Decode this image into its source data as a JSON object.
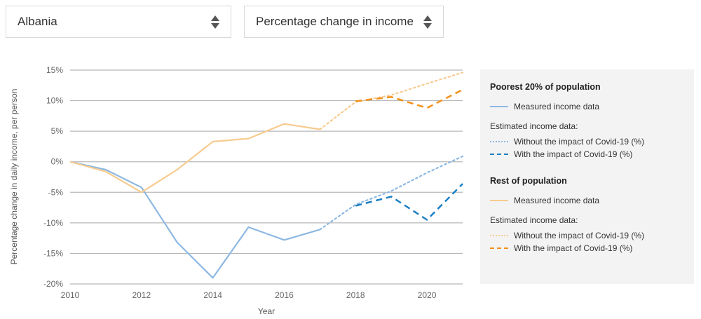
{
  "controls": {
    "country": "Albania",
    "measure": "Percentage change in income"
  },
  "colors": {
    "poorest_measured": "#8db8e2",
    "poorest_without": "#8db8e2",
    "poorest_with": "#1c7fc2",
    "rest_measured": "#f7cb8f",
    "rest_without": "#f7cb8f",
    "rest_with": "#f2911c"
  },
  "legend": {
    "poorest_title": "Poorest 20% of population",
    "measured": "Measured income data",
    "estimated": "Estimated income data:",
    "without": "Without the impact of Covid-19 (%)",
    "with": "With the impact of Covid-19 (%)",
    "rest_title": "Rest of population"
  },
  "chart_data": {
    "type": "line",
    "xlabel": "Year",
    "ylabel": "Percentage change in daily income, per person",
    "xlim": [
      2010,
      2021
    ],
    "ylim": [
      -20,
      15
    ],
    "x_ticks": [
      2010,
      2012,
      2014,
      2016,
      2018,
      2020
    ],
    "x_tick_labels": [
      "2010",
      "2012",
      "2014",
      "2016",
      "2018",
      "2020"
    ],
    "y_ticks": [
      15,
      10,
      5,
      0,
      -5,
      -10,
      -15,
      -20
    ],
    "y_tick_labels": [
      "15%",
      "10%",
      "5%",
      "0%",
      "-5%",
      "-10%",
      "-15%",
      "-20%"
    ],
    "grid": true,
    "series": [
      {
        "name": "Poorest 20% of population - Measured income data",
        "style": "solid",
        "color_key": "poorest_measured",
        "x": [
          2010,
          2011,
          2012,
          2013,
          2014,
          2015,
          2016,
          2017
        ],
        "y": [
          0,
          -1.3,
          -4.2,
          -13.2,
          -19.0,
          -10.7,
          -12.8,
          -11.1
        ]
      },
      {
        "name": "Poorest 20% of population - Without the impact of Covid-19 (%)",
        "style": "dotted",
        "color_key": "poorest_without",
        "x": [
          2017,
          2018,
          2019,
          2020,
          2021
        ],
        "y": [
          -11.1,
          -7.0,
          -4.8,
          -1.8,
          0.9
        ]
      },
      {
        "name": "Poorest 20% of population - With the impact of Covid-19 (%)",
        "style": "dashed",
        "color_key": "poorest_with",
        "x": [
          2018,
          2019,
          2020,
          2021
        ],
        "y": [
          -7.2,
          -5.7,
          -9.5,
          -3.6
        ]
      },
      {
        "name": "Rest of population - Measured income data",
        "style": "solid",
        "color_key": "rest_measured",
        "x": [
          2010,
          2011,
          2012,
          2013,
          2014,
          2015,
          2016,
          2017
        ],
        "y": [
          0,
          -1.6,
          -5.0,
          -1.3,
          3.3,
          3.8,
          6.2,
          5.3
        ]
      },
      {
        "name": "Rest of population - Without the impact of Covid-19 (%)",
        "style": "dotted",
        "color_key": "rest_without",
        "x": [
          2017,
          2018,
          2019,
          2020,
          2021
        ],
        "y": [
          5.3,
          9.8,
          10.9,
          12.8,
          14.6
        ]
      },
      {
        "name": "Rest of population - With the impact of Covid-19 (%)",
        "style": "dashed",
        "color_key": "rest_with",
        "x": [
          2018,
          2019,
          2020,
          2021
        ],
        "y": [
          9.9,
          10.6,
          8.8,
          11.8
        ]
      }
    ]
  }
}
